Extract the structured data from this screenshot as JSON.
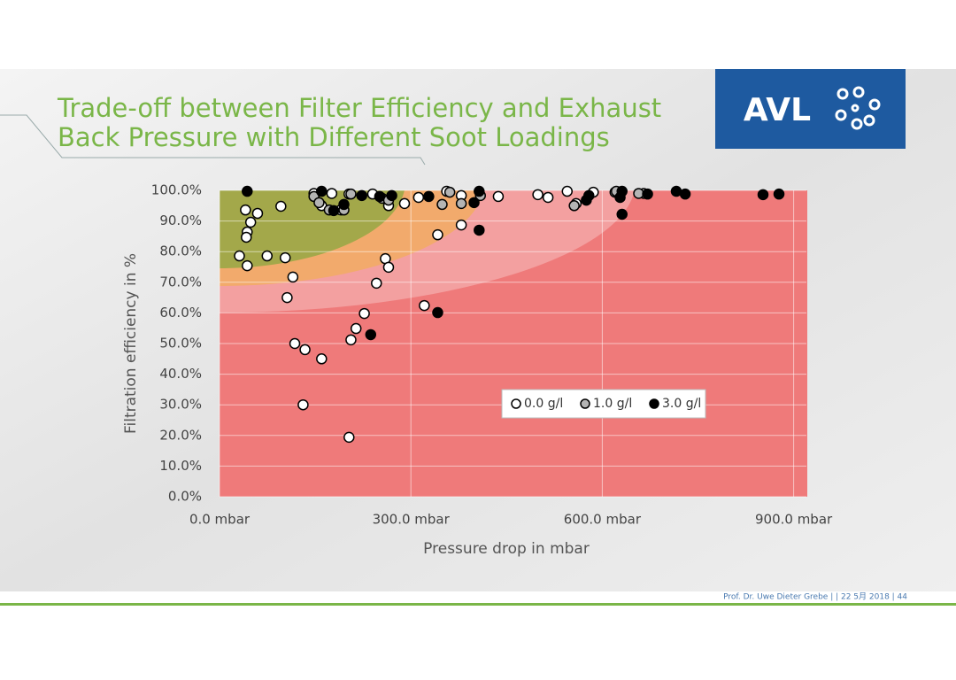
{
  "chart_data": {
    "type": "scatter",
    "title": [
      "Trade-off between Filter Efficiency and Exhaust",
      "Back Pressure with Different Soot Loadings"
    ],
    "xlabel": "Pressure drop in mbar",
    "ylabel": "Filtration efficiency in %",
    "xlim": [
      0,
      920
    ],
    "ylim": [
      0,
      100
    ],
    "xticks": [
      {
        "value": 0,
        "label": "0.0 mbar"
      },
      {
        "value": 300,
        "label": "300.0 mbar"
      },
      {
        "value": 600,
        "label": "600.0 mbar"
      },
      {
        "value": 900,
        "label": "900.0 mbar"
      }
    ],
    "yticks": [
      {
        "value": 0,
        "label": "0.0%"
      },
      {
        "value": 10,
        "label": "10.0%"
      },
      {
        "value": 20,
        "label": "20.0%"
      },
      {
        "value": 30,
        "label": "30.0%"
      },
      {
        "value": 40,
        "label": "40.0%"
      },
      {
        "value": 50,
        "label": "50.0%"
      },
      {
        "value": 60,
        "label": "60.0%"
      },
      {
        "value": 70,
        "label": "70.0%"
      },
      {
        "value": 80,
        "label": "80.0%"
      },
      {
        "value": 90,
        "label": "90.0%"
      },
      {
        "value": 100,
        "label": "100.0%"
      }
    ],
    "grid": true,
    "series": [
      {
        "name": "0.0 g/l",
        "color": "#ffffff",
        "x": [
          40.7,
          59.6,
          48.8,
          43.4,
          42,
          31.2,
          43.4,
          74.6,
          96.2,
          103,
          115,
          106,
          118,
          134,
          160,
          131,
          203,
          206,
          214,
          227,
          246,
          260,
          265,
          148,
          160,
          176,
          190,
          203,
          240,
          265,
          290,
          312,
          321,
          342,
          356,
          379,
          379,
          437,
          499,
          515,
          545,
          559,
          586,
          620,
          665
        ],
        "values": [
          93.6,
          92.5,
          89.6,
          86.4,
          84.7,
          78.6,
          75.4,
          78.6,
          94.8,
          78,
          71.7,
          65,
          50,
          48,
          45,
          30,
          19.4,
          51.2,
          54.9,
          59.8,
          69.7,
          77.7,
          74.9,
          99,
          95,
          99,
          93.6,
          98.8,
          98.8,
          95,
          95.7,
          97.7,
          62.4,
          85.5,
          99.7,
          88.7,
          98.3,
          98,
          98.6,
          97.7,
          99.7,
          95.7,
          99.4,
          99.4,
          99
        ]
      },
      {
        "name": "1.0 g/l",
        "color": "#b4b4b4",
        "x": [
          148,
          156,
          172,
          195,
          206,
          255,
          265,
          349,
          361,
          379,
          409,
          556,
          622,
          657
        ],
        "values": [
          98,
          96,
          93.6,
          93.6,
          98.8,
          97.4,
          96.8,
          95.4,
          99.4,
          95.7,
          98.3,
          95,
          99.7,
          99
        ]
      },
      {
        "name": "3.0 g/l",
        "color": "#000000",
        "x": [
          43.4,
          160,
          179,
          195,
          223,
          237,
          251,
          270,
          328,
          342,
          399,
          407,
          407,
          575,
          579,
          631,
          631,
          628,
          671,
          716,
          730,
          852,
          877
        ],
        "values": [
          99.7,
          99.7,
          93.4,
          95.4,
          98.3,
          52.9,
          98,
          98.3,
          98,
          60.1,
          96,
          87,
          99.7,
          96.8,
          98.3,
          99.7,
          92.2,
          97.7,
          98.8,
          99.7,
          98.8,
          98.6,
          98.8
        ]
      }
    ]
  },
  "logo": "AVL",
  "footer": "Prof. Dr. Uwe Dieter Grebe |  | 22 5月 2018 | 44"
}
